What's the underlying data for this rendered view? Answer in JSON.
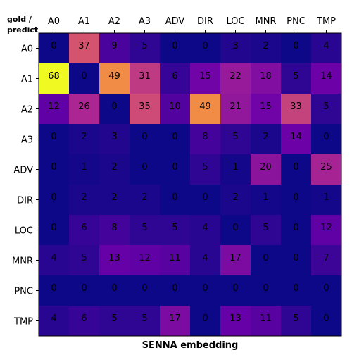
{
  "corner_label": {
    "line1": "gold /",
    "line2": "predict"
  },
  "colormap": [
    "#0d0887",
    "#6a00a8",
    "#b12a90",
    "#e16462",
    "#fca636",
    "#f0f921"
  ],
  "chart_data": {
    "type": "heatmap",
    "title": "",
    "xlabel": "SENNA embedding",
    "ylabel": "",
    "x_categories": [
      "A0",
      "A1",
      "A2",
      "A3",
      "ADV",
      "DIR",
      "LOC",
      "MNR",
      "PNC",
      "TMP"
    ],
    "y_categories": [
      "A0",
      "A1",
      "A2",
      "A3",
      "ADV",
      "DIR",
      "LOC",
      "MNR",
      "PNC",
      "TMP"
    ],
    "values": [
      [
        0,
        37,
        9,
        5,
        0,
        0,
        3,
        2,
        0,
        4
      ],
      [
        68,
        0,
        49,
        31,
        6,
        15,
        22,
        18,
        5,
        14
      ],
      [
        12,
        26,
        0,
        35,
        10,
        49,
        21,
        15,
        33,
        5
      ],
      [
        0,
        2,
        3,
        0,
        0,
        8,
        5,
        2,
        14,
        0
      ],
      [
        0,
        1,
        2,
        0,
        0,
        5,
        1,
        20,
        0,
        25
      ],
      [
        0,
        2,
        2,
        2,
        0,
        0,
        2,
        1,
        0,
        1
      ],
      [
        0,
        6,
        8,
        5,
        5,
        4,
        0,
        5,
        0,
        12
      ],
      [
        4,
        5,
        13,
        12,
        11,
        4,
        17,
        0,
        0,
        7
      ],
      [
        0,
        0,
        0,
        0,
        0,
        0,
        0,
        0,
        0,
        0
      ],
      [
        4,
        6,
        5,
        5,
        17,
        0,
        13,
        11,
        5,
        0
      ]
    ],
    "color_range": [
      0,
      68
    ],
    "colormap_name": "plasma",
    "grid": false
  }
}
